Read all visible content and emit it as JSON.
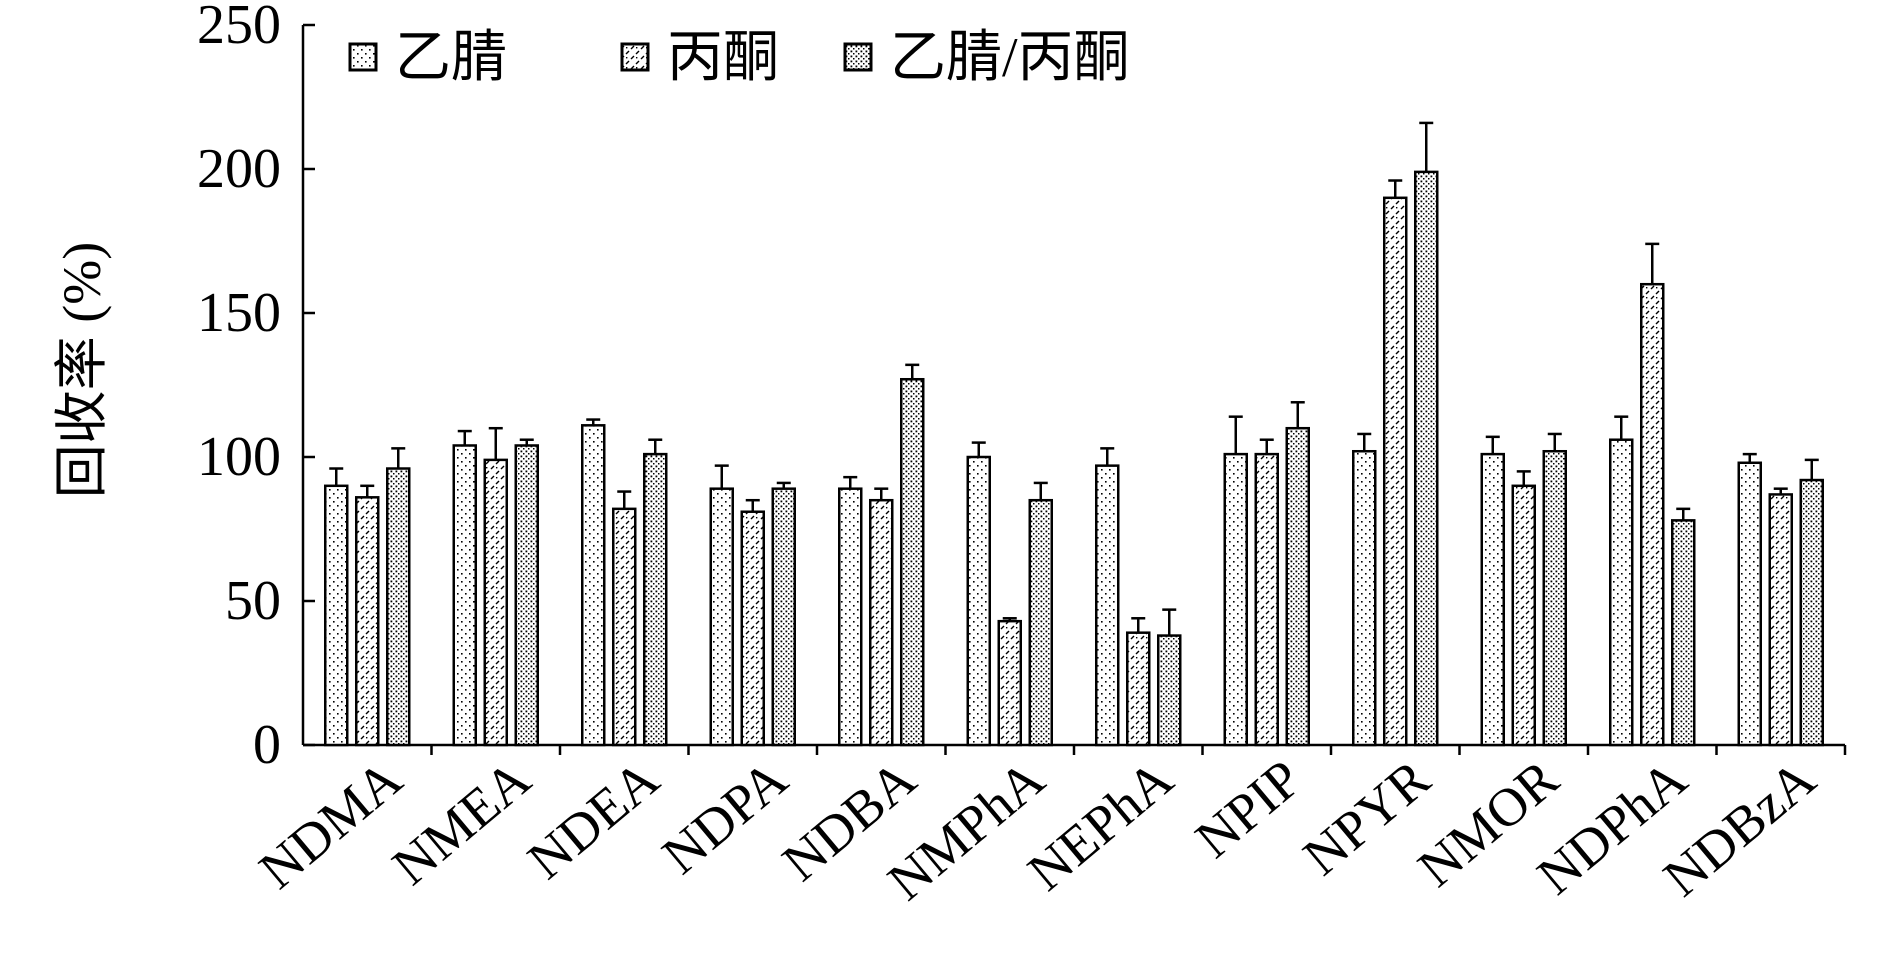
{
  "chart_data": {
    "type": "bar",
    "title": "",
    "xlabel": "",
    "ylabel": "回收率 (%)",
    "ylim": [
      0,
      250
    ],
    "yticks": [
      0,
      50,
      100,
      150,
      200,
      250
    ],
    "grid": false,
    "legend_position": "top-left",
    "categories": [
      "NDMA",
      "NMEA",
      "NDEA",
      "NDPA",
      "NDBA",
      "NMPhA",
      "NEPhA",
      "NPIP",
      "NPYR",
      "NMOR",
      "NDPhA",
      "NDBzA"
    ],
    "series": [
      {
        "name": "乙腈",
        "pattern": "dots-sparse",
        "values": [
          90,
          104,
          111,
          89,
          89,
          100,
          97,
          101,
          102,
          101,
          106,
          98
        ],
        "errors": [
          6,
          5,
          2,
          8,
          4,
          5,
          6,
          13,
          6,
          6,
          8,
          3
        ]
      },
      {
        "name": "丙酮",
        "pattern": "dashes",
        "values": [
          86,
          99,
          82,
          81,
          85,
          43,
          39,
          101,
          190,
          90,
          160,
          87
        ],
        "errors": [
          4,
          11,
          6,
          4,
          4,
          1,
          5,
          5,
          6,
          5,
          14,
          2
        ]
      },
      {
        "name": "乙腈/丙酮",
        "pattern": "dots-dense",
        "values": [
          96,
          104,
          101,
          89,
          127,
          85,
          38,
          110,
          199,
          102,
          78,
          92
        ],
        "errors": [
          7,
          2,
          5,
          2,
          5,
          6,
          9,
          9,
          17,
          6,
          4,
          7
        ]
      }
    ]
  }
}
